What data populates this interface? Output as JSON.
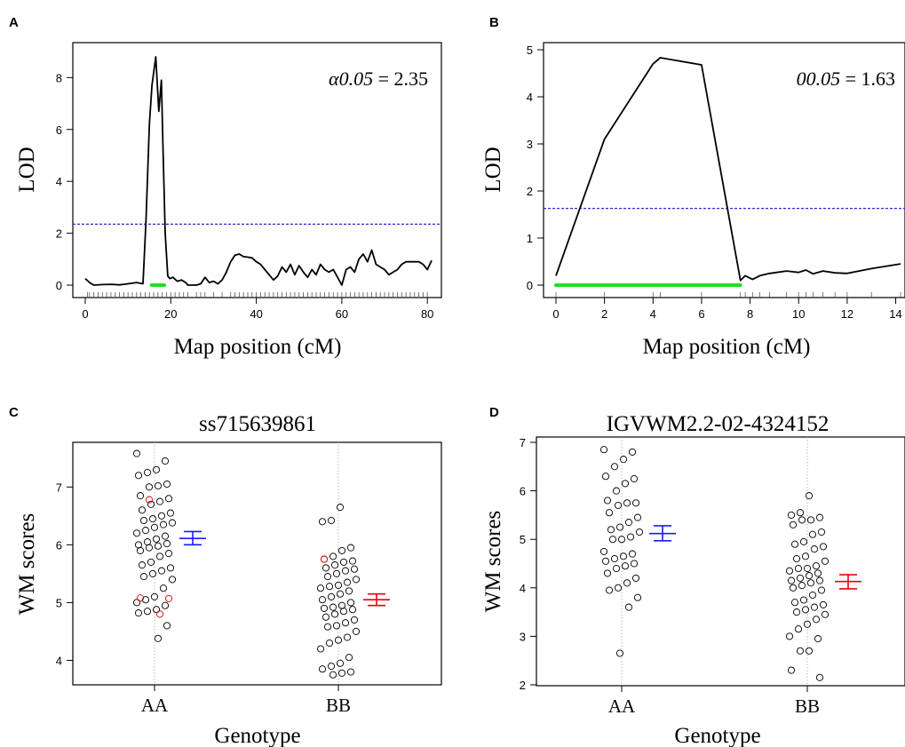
{
  "chart_data": [
    {
      "panel": "A",
      "type": "line",
      "xlabel": "Map position (cM)",
      "ylabel": "LOD",
      "xlim": [
        0,
        81
      ],
      "ylim": [
        0,
        8.8
      ],
      "xticks": [
        0,
        20,
        40,
        60,
        80
      ],
      "yticks": [
        0,
        2,
        4,
        6,
        8
      ],
      "threshold": 2.35,
      "annotation": {
        "symbol": "α0.05",
        "eq": " = 2.35"
      },
      "interval": [
        15.5,
        18.5
      ],
      "x": [
        0,
        1,
        2,
        4,
        6,
        8,
        10,
        12,
        13.5,
        14.2,
        15,
        15.6,
        16.5,
        17.2,
        17.8,
        18.2,
        18.7,
        19.3,
        19.8,
        20.5,
        21.5,
        22.5,
        23.5,
        24,
        26,
        27,
        28,
        29,
        30,
        31,
        32,
        33,
        34,
        35,
        36,
        37,
        38,
        39,
        40,
        41,
        42,
        43,
        44,
        45,
        46,
        47,
        48,
        49,
        50,
        51,
        52,
        53,
        54,
        55,
        56,
        57,
        58,
        59,
        60,
        61,
        62,
        63,
        64,
        65,
        66,
        67,
        68,
        69,
        70,
        71,
        72,
        73,
        74,
        75,
        76,
        77,
        78,
        79,
        80,
        81
      ],
      "y": [
        0.25,
        0.1,
        0.0,
        0.02,
        0.03,
        0.01,
        0.05,
        0.1,
        0.05,
        2.5,
        6.2,
        7.7,
        8.8,
        6.7,
        7.9,
        5.2,
        2.0,
        0.35,
        0.25,
        0.3,
        0.15,
        0.2,
        0.1,
        0.0,
        0.0,
        0.05,
        0.3,
        0.1,
        0.15,
        0.05,
        0.2,
        0.5,
        0.9,
        1.15,
        1.2,
        1.1,
        1.08,
        1.05,
        0.9,
        0.8,
        0.6,
        0.4,
        0.2,
        0.35,
        0.7,
        0.5,
        0.8,
        0.4,
        0.75,
        0.5,
        0.3,
        0.6,
        0.4,
        0.8,
        0.6,
        0.5,
        0.6,
        0.3,
        0.0,
        0.6,
        0.7,
        0.5,
        1.0,
        1.2,
        0.9,
        1.35,
        0.8,
        0.7,
        0.6,
        0.4,
        0.5,
        0.6,
        0.8,
        0.9,
        0.9,
        0.9,
        0.9,
        0.8,
        0.6,
        0.95
      ],
      "markers": [
        0.5,
        1,
        2,
        3,
        4,
        5,
        6,
        7,
        8,
        9,
        10,
        11,
        12,
        13,
        14,
        15,
        16,
        17,
        18,
        19,
        20,
        21,
        22,
        23,
        24,
        26,
        27,
        28,
        30,
        32,
        34,
        35,
        36,
        37,
        38,
        39,
        40,
        41,
        42,
        43,
        44,
        45,
        46,
        47,
        48,
        49,
        50,
        51,
        52,
        53,
        54,
        55,
        56,
        57,
        58,
        59,
        60,
        61,
        62,
        63,
        64,
        65,
        66,
        67,
        68,
        69,
        70,
        71,
        72,
        73,
        74,
        75,
        76,
        77,
        78,
        79,
        80
      ]
    },
    {
      "panel": "B",
      "type": "line",
      "xlabel": "Map position (cM)",
      "ylabel": "LOD",
      "xlim": [
        0,
        14.2
      ],
      "ylim": [
        0,
        5
      ],
      "xticks": [
        0,
        2,
        4,
        6,
        8,
        10,
        12,
        14
      ],
      "yticks": [
        0,
        1,
        2,
        3,
        4,
        5
      ],
      "threshold": 1.63,
      "annotation": {
        "symbol": "00.05",
        "eq": " = 1.63"
      },
      "interval": [
        0,
        7.6
      ],
      "x": [
        0,
        2,
        4,
        4.3,
        6,
        7.6,
        7.8,
        8.1,
        8.4,
        8.8,
        9.5,
        10,
        10.3,
        10.6,
        11,
        11.5,
        12,
        13,
        14.2
      ],
      "y": [
        0.2,
        3.1,
        4.7,
        4.83,
        4.68,
        0.1,
        0.2,
        0.12,
        0.2,
        0.25,
        0.3,
        0.27,
        0.32,
        0.24,
        0.3,
        0.26,
        0.25,
        0.35,
        0.45
      ],
      "markers": [
        0,
        2,
        4,
        4.3,
        6,
        7.6,
        7.8,
        8.1,
        8.4,
        8.8,
        9.5,
        10,
        10.3,
        10.6,
        11,
        11.5,
        12,
        13,
        14.2
      ]
    },
    {
      "panel": "C",
      "type": "scatter",
      "title": "ss715639861",
      "xlabel": "Genotype",
      "ylabel": "WM scores",
      "categories": [
        "AA",
        "BB"
      ],
      "ylim": [
        3.7,
        7.65
      ],
      "yticks": [
        4,
        5,
        6,
        7
      ],
      "series": [
        {
          "category": "AA",
          "mean": 6.11,
          "ci": [
            6.0,
            6.23
          ],
          "ci_color": "#1a1aff",
          "values": [
            7.58,
            7.45,
            7.3,
            7.25,
            7.2,
            7.05,
            7.02,
            7.0,
            6.85,
            6.8,
            6.75,
            6.7,
            6.6,
            6.55,
            6.5,
            6.45,
            6.42,
            6.38,
            6.35,
            6.3,
            6.25,
            6.2,
            6.15,
            6.1,
            6.05,
            6.0,
            6.02,
            5.98,
            5.95,
            5.9,
            5.85,
            5.8,
            5.7,
            5.65,
            5.6,
            5.55,
            5.5,
            5.45,
            5.4,
            5.25,
            5.1,
            5.05,
            5.0,
            4.95,
            4.88,
            4.85,
            4.82,
            4.6,
            4.38,
            6.78,
            5.08,
            5.07,
            4.8
          ],
          "red_flags": [
            49,
            50,
            51,
            52
          ]
        },
        {
          "category": "BB",
          "mean": 5.05,
          "ci": [
            4.95,
            5.15
          ],
          "ci_color": "#e8000b",
          "values": [
            6.65,
            6.42,
            6.4,
            5.95,
            5.9,
            5.8,
            5.75,
            5.72,
            5.7,
            5.65,
            5.6,
            5.58,
            5.55,
            5.5,
            5.45,
            5.4,
            5.35,
            5.3,
            5.28,
            5.25,
            5.2,
            5.15,
            5.1,
            5.05,
            5.0,
            4.95,
            4.92,
            4.9,
            4.88,
            4.85,
            4.8,
            4.75,
            4.7,
            4.65,
            4.6,
            4.58,
            4.5,
            4.4,
            4.35,
            4.3,
            4.2,
            4.05,
            3.95,
            3.9,
            3.85,
            3.8,
            3.78,
            3.75,
            5.75
          ],
          "red_flags": [
            48
          ]
        }
      ]
    },
    {
      "panel": "D",
      "type": "scatter",
      "title": "IGVWM2.2-02-4324152",
      "xlabel": "Genotype",
      "ylabel": "WM scores",
      "categories": [
        "AA",
        "BB"
      ],
      "ylim": [
        2,
        7
      ],
      "yticks": [
        2,
        3,
        4,
        5,
        6,
        7
      ],
      "series": [
        {
          "category": "AA",
          "mean": 5.12,
          "ci": [
            4.97,
            5.28
          ],
          "ci_color": "#1a1aff",
          "values": [
            6.85,
            6.8,
            6.65,
            6.5,
            6.3,
            6.25,
            6.15,
            6.0,
            5.8,
            5.75,
            5.75,
            5.7,
            5.55,
            5.45,
            5.35,
            5.25,
            5.2,
            5.15,
            5.05,
            5.0,
            5.0,
            4.75,
            4.7,
            4.65,
            4.6,
            4.55,
            4.5,
            4.45,
            4.4,
            4.3,
            4.2,
            4.1,
            4.0,
            3.95,
            3.8,
            3.6,
            2.65
          ]
        },
        {
          "category": "BB",
          "mean": 4.13,
          "ci": [
            3.98,
            4.27
          ],
          "ci_color": "#e8000b",
          "values": [
            5.9,
            5.55,
            5.5,
            5.45,
            5.4,
            5.4,
            5.3,
            5.15,
            5.1,
            4.95,
            4.9,
            4.85,
            4.8,
            4.65,
            4.6,
            4.55,
            4.45,
            4.4,
            4.4,
            4.35,
            4.3,
            4.25,
            4.2,
            4.15,
            4.15,
            4.1,
            4.05,
            4.0,
            3.95,
            3.85,
            3.75,
            3.7,
            3.65,
            3.6,
            3.55,
            3.5,
            3.45,
            3.35,
            3.25,
            3.15,
            3.0,
            2.95,
            2.7,
            2.7,
            2.3,
            2.15
          ]
        }
      ]
    }
  ],
  "colors": {
    "line": "#000000",
    "threshold": "#2b2bcc",
    "interval": "#22dd22",
    "axis": "#000000",
    "guide": "#aaaaaa",
    "point_red": "#e8000b"
  }
}
